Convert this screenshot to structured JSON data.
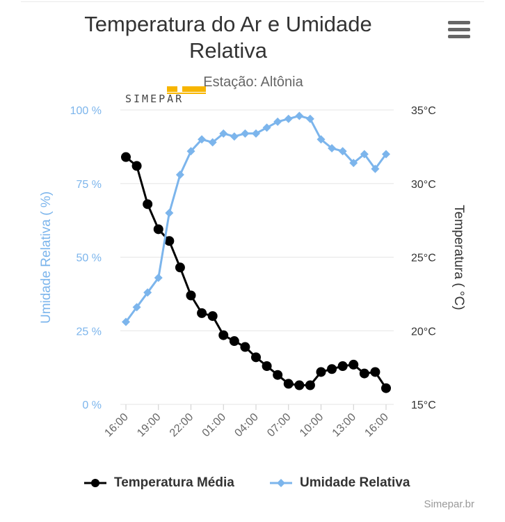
{
  "header": {
    "title_line1": "Temperatura do Ar e Umidade",
    "title_line2": "Relativa",
    "subtitle": "Estação: Altônia",
    "menu_icon": "hamburger-menu-icon",
    "logo_text": "SIMEPAR"
  },
  "credit": "Simepar.br",
  "colors": {
    "temperature": "#000000",
    "humidity": "#7cb5ec",
    "grid": "#e6e6e6",
    "left_axis_text": "#7cb5ec",
    "right_axis_text": "#333333",
    "logo_accent": "#f7b500"
  },
  "chart_data": {
    "type": "line",
    "title": "Temperatura do Ar e Umidade Relativa",
    "subtitle": "Estação: Altônia",
    "x": [
      "16:00",
      "17:00",
      "18:00",
      "19:00",
      "20:00",
      "21:00",
      "22:00",
      "23:00",
      "00:00",
      "01:00",
      "02:00",
      "03:00",
      "04:00",
      "05:00",
      "06:00",
      "07:00",
      "08:00",
      "09:00",
      "10:00",
      "11:00",
      "12:00",
      "13:00",
      "14:00",
      "15:00",
      "16:00"
    ],
    "x_tick_labels": [
      "16:00",
      "19:00",
      "22:00",
      "01:00",
      "04:00",
      "07:00",
      "10:00",
      "13:00",
      "16:00"
    ],
    "x_tick_indices": [
      0,
      3,
      6,
      9,
      12,
      15,
      18,
      21,
      24
    ],
    "y_left": {
      "label": "Umidade Relativa ( %)",
      "range": [
        0,
        100
      ],
      "ticks": [
        "0 %",
        "25 %",
        "50 %",
        "75 %",
        "100 %"
      ]
    },
    "y_right": {
      "label": "Temperatura ( °C)",
      "range": [
        15,
        35
      ],
      "ticks": [
        "15°C",
        "20°C",
        "25°C",
        "30°C",
        "35°C"
      ]
    },
    "grid": true,
    "legend_position": "bottom",
    "series": [
      {
        "name": "Temperatura Média",
        "axis": "right",
        "marker": "circle",
        "x_index": [
          0,
          1,
          2,
          3,
          4,
          5,
          6,
          7,
          8,
          9,
          10,
          11,
          12,
          13,
          14,
          15,
          16,
          17,
          18,
          19,
          20,
          21,
          22,
          23,
          24
        ],
        "values": [
          31.8,
          31.2,
          28.6,
          26.9,
          26.1,
          24.3,
          22.4,
          21.2,
          21.0,
          19.7,
          19.3,
          18.9,
          18.2,
          17.6,
          17.0,
          16.4,
          16.3,
          16.3,
          17.2,
          17.4,
          17.6,
          17.7,
          17.1,
          17.2,
          16.1
        ]
      },
      {
        "name": "Umidade Relativa",
        "axis": "left",
        "marker": "diamond",
        "x_index": [
          0,
          1,
          2,
          3,
          4,
          5,
          6,
          7,
          8,
          9,
          10,
          11,
          12,
          13,
          14,
          15,
          16,
          17,
          18,
          19,
          20,
          21,
          22,
          23,
          24
        ],
        "values": [
          28,
          33,
          38,
          43,
          65,
          78,
          86,
          90,
          89,
          92,
          91,
          92,
          92,
          94,
          96,
          97,
          98,
          97,
          90,
          87,
          86,
          82,
          85,
          80,
          85
        ]
      }
    ]
  }
}
